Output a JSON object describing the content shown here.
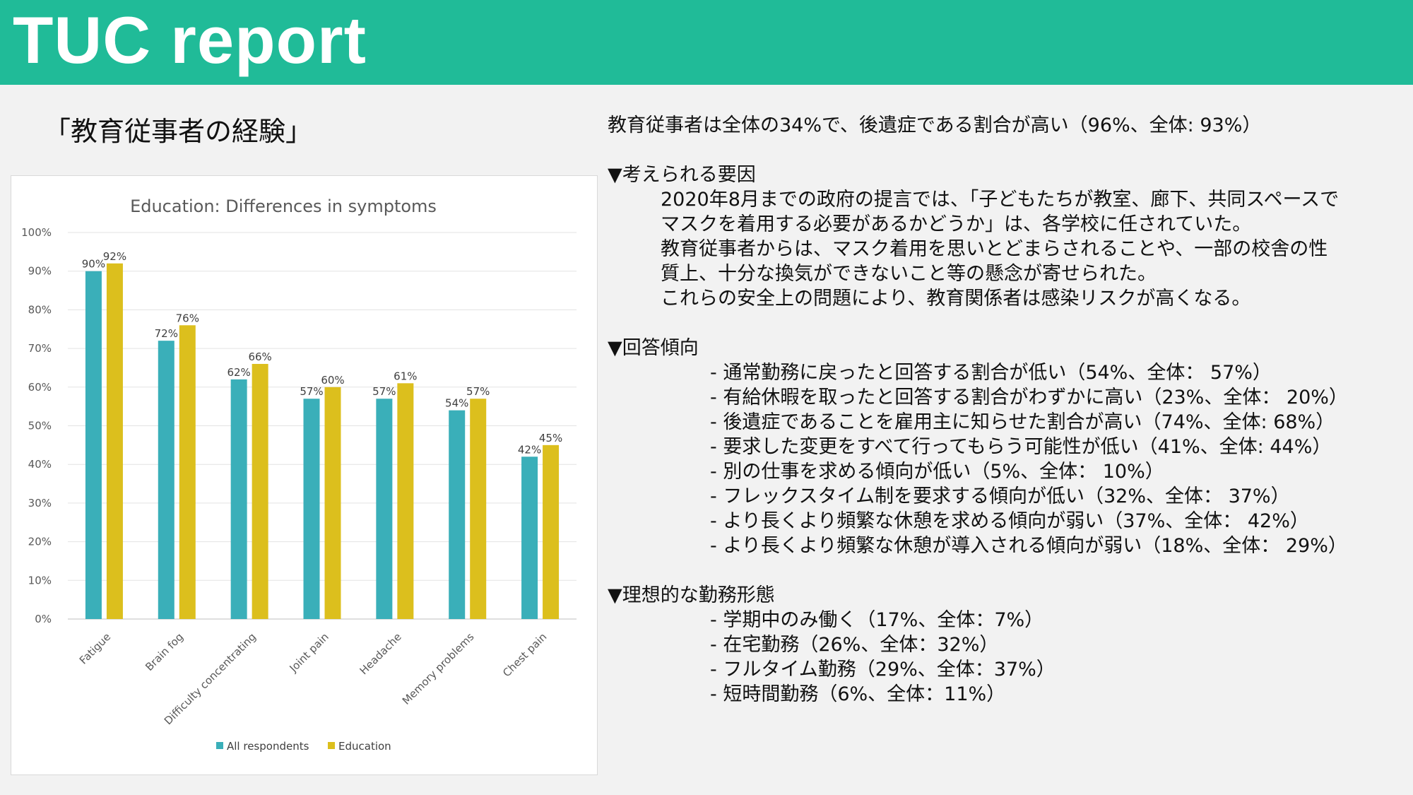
{
  "header": {
    "title": "TUC report"
  },
  "subtitle": "「教育従事者の経験」",
  "summary": "教育従事者は全体の34%で、後遺症である割合が高い（96%、全体: 93%）",
  "sections": [
    {
      "title": "▼考えられる要因",
      "lines": [
        "2020年8月までの政府の提言では、「子どもたちが教室、廊下、共同スペースで",
        "マスクを着用する必要があるかどうか」は、各学校に任されていた。",
        "教育従事者からは、マスク着用を思いとどまらされることや、一部の校舎の性",
        "質上、十分な換気ができないこと等の懸念が寄せられた。",
        "これらの安全上の問題により、教育関係者は感染リスクが高くなる。"
      ]
    },
    {
      "title": "▼回答傾向",
      "lines": [
        "- 通常勤務に戻ったと回答する割合が低い（54%、全体： 57%）",
        "- 有給休暇を取ったと回答する割合がわずかに高い（23%、全体： 20%）",
        "- 後遺症であることを雇用主に知らせた割合が高い（74%、全体: 68%）",
        "- 要求した変更をすべて行ってもらう可能性が低い（41%、全体: 44%）",
        "- 別の仕事を求める傾向が低い（5%、全体： 10%）",
        "- フレックスタイム制を要求する傾向が低い（32%、全体： 37%）",
        "- より長くより頻繁な休憩を求める傾向が弱い（37%、全体： 42%）",
        "- より長くより頻繁な休憩が導入される傾向が弱い（18%、全体： 29%）"
      ]
    },
    {
      "title": "▼理想的な勤務形態",
      "lines": [
        "- 学期中のみ働く（17%、全体：7%）",
        "- 在宅勤務（26%、全体：32%）",
        "- フルタイム勤務（29%、全体：37%）",
        "- 短時間勤務（6%、全体：11%）"
      ]
    }
  ],
  "chart_data": {
    "type": "bar",
    "title": "Education: Differences in symptoms",
    "categories": [
      "Fatigue",
      "Brain fog",
      "Difficulty concentrating",
      "Joint pain",
      "Headache",
      "Memory problems",
      "Chest pain"
    ],
    "series": [
      {
        "name": "All respondents",
        "values": [
          90,
          72,
          62,
          57,
          57,
          54,
          42
        ],
        "labels": [
          "90%",
          "72%",
          "62%",
          "57%",
          "57%",
          "54%",
          "42%"
        ],
        "color": "#3aafb9"
      },
      {
        "name": "Education",
        "values": [
          92,
          76,
          66,
          60,
          61,
          57,
          45
        ],
        "labels": [
          "92%",
          "76%",
          "66%",
          "60%",
          "61%",
          "57%",
          "45%"
        ],
        "color": "#dcbf1d"
      }
    ],
    "ylim": [
      0,
      100
    ],
    "yticks": [
      "0%",
      "10%",
      "20%",
      "30%",
      "40%",
      "50%",
      "60%",
      "70%",
      "80%",
      "90%",
      "100%"
    ],
    "xlabel": "",
    "ylabel": "",
    "grid": true,
    "legend": "bottom"
  }
}
